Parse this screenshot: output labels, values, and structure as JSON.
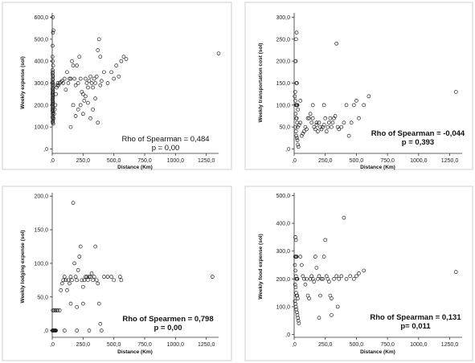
{
  "chart_data": [
    {
      "type": "scatter",
      "panel": "A",
      "xlabel": "Distance (Km)",
      "ylabel": "Weekly expense (sol)",
      "xlim": [
        0,
        1350
      ],
      "ylim": [
        -20,
        620
      ],
      "x_ticks": [
        ",0",
        "250,0",
        "500,0",
        "750,0",
        "1000,0",
        "1250,0"
      ],
      "x_tick_values": [
        0,
        250,
        500,
        750,
        1000,
        1250
      ],
      "y_ticks": [
        ",0",
        "100,0",
        "200,0",
        "300,0",
        "400,0",
        "500,0",
        "600,0"
      ],
      "y_tick_values": [
        0,
        100,
        200,
        300,
        400,
        500,
        600
      ],
      "annotations": [
        "Rho of Spearman = 0,484",
        "p = 0,00"
      ],
      "annotation_bold": false,
      "points": [
        [
          5,
          600
        ],
        [
          6,
          530
        ],
        [
          10,
          540
        ],
        [
          3,
          470
        ],
        [
          2,
          420
        ],
        [
          4,
          400
        ],
        [
          7,
          380
        ],
        [
          3,
          360
        ],
        [
          5,
          350
        ],
        [
          2,
          345
        ],
        [
          4,
          335
        ],
        [
          6,
          330
        ],
        [
          3,
          320
        ],
        [
          5,
          315
        ],
        [
          2,
          305
        ],
        [
          4,
          300
        ],
        [
          6,
          295
        ],
        [
          3,
          290
        ],
        [
          5,
          280
        ],
        [
          2,
          275
        ],
        [
          4,
          270
        ],
        [
          6,
          265
        ],
        [
          3,
          260
        ],
        [
          5,
          255
        ],
        [
          2,
          250
        ],
        [
          4,
          245
        ],
        [
          6,
          240
        ],
        [
          3,
          235
        ],
        [
          5,
          230
        ],
        [
          2,
          225
        ],
        [
          4,
          220
        ],
        [
          6,
          215
        ],
        [
          3,
          210
        ],
        [
          5,
          205
        ],
        [
          2,
          200
        ],
        [
          4,
          195
        ],
        [
          6,
          190
        ],
        [
          3,
          185
        ],
        [
          5,
          180
        ],
        [
          2,
          175
        ],
        [
          4,
          170
        ],
        [
          6,
          165
        ],
        [
          3,
          160
        ],
        [
          5,
          150
        ],
        [
          2,
          145
        ],
        [
          4,
          140
        ],
        [
          6,
          130
        ],
        [
          3,
          125
        ],
        [
          5,
          120
        ],
        [
          8,
          115
        ],
        [
          12,
          140
        ],
        [
          15,
          160
        ],
        [
          20,
          180
        ],
        [
          25,
          200
        ],
        [
          30,
          250
        ],
        [
          35,
          280
        ],
        [
          40,
          290
        ],
        [
          45,
          300
        ],
        [
          50,
          290
        ],
        [
          60,
          300
        ],
        [
          70,
          305
        ],
        [
          80,
          310
        ],
        [
          90,
          300
        ],
        [
          100,
          320
        ],
        [
          110,
          270
        ],
        [
          120,
          350
        ],
        [
          130,
          300
        ],
        [
          140,
          320
        ],
        [
          150,
          320
        ],
        [
          160,
          400
        ],
        [
          170,
          380
        ],
        [
          180,
          320
        ],
        [
          190,
          290
        ],
        [
          200,
          380
        ],
        [
          210,
          300
        ],
        [
          220,
          420
        ],
        [
          230,
          320
        ],
        [
          240,
          260
        ],
        [
          250,
          250
        ],
        [
          260,
          220
        ],
        [
          270,
          320
        ],
        [
          280,
          300
        ],
        [
          290,
          280
        ],
        [
          300,
          310
        ],
        [
          310,
          330
        ],
        [
          320,
          300
        ],
        [
          330,
          280
        ],
        [
          340,
          320
        ],
        [
          350,
          300
        ],
        [
          360,
          330
        ],
        [
          370,
          450
        ],
        [
          380,
          500
        ],
        [
          390,
          420
        ],
        [
          400,
          310
        ],
        [
          420,
          350
        ],
        [
          450,
          300
        ],
        [
          480,
          350
        ],
        [
          500,
          320
        ],
        [
          520,
          380
        ],
        [
          540,
          330
        ],
        [
          560,
          400
        ],
        [
          580,
          420
        ],
        [
          600,
          410
        ],
        [
          150,
          100
        ],
        [
          170,
          200
        ],
        [
          190,
          150
        ],
        [
          210,
          180
        ],
        [
          230,
          200
        ],
        [
          250,
          160
        ],
        [
          270,
          240
        ],
        [
          290,
          210
        ],
        [
          310,
          140
        ],
        [
          330,
          180
        ],
        [
          350,
          230
        ],
        [
          370,
          120
        ],
        [
          390,
          290
        ],
        [
          1350,
          435
        ]
      ]
    },
    {
      "type": "scatter",
      "panel": "B",
      "xlabel": "Distance (Km)",
      "ylabel": "Weekly transportation cost (sol)",
      "xlim": [
        0,
        1350
      ],
      "ylim": [
        -10,
        310
      ],
      "x_ticks": [
        ",0",
        "250,0",
        "500,0",
        "750,0",
        "1000,0",
        "1250,0"
      ],
      "x_tick_values": [
        0,
        250,
        500,
        750,
        1000,
        1250
      ],
      "y_ticks": [
        ",0",
        "50,0",
        "100,0",
        "150,0",
        "200,0",
        "250,0",
        "300,0"
      ],
      "y_tick_values": [
        0,
        50,
        100,
        150,
        200,
        250,
        300
      ],
      "annotations": [
        "Rho of Spearman = -0,044",
        "p = 0,393"
      ],
      "annotation_bold": true,
      "points": [
        [
          20,
          265
        ],
        [
          15,
          250
        ],
        [
          10,
          200
        ],
        [
          12,
          200
        ],
        [
          18,
          150
        ],
        [
          22,
          150
        ],
        [
          8,
          130
        ],
        [
          5,
          120
        ],
        [
          10,
          110
        ],
        [
          14,
          100
        ],
        [
          18,
          100
        ],
        [
          22,
          100
        ],
        [
          26,
          100
        ],
        [
          30,
          90
        ],
        [
          12,
          80
        ],
        [
          16,
          70
        ],
        [
          20,
          70
        ],
        [
          24,
          60
        ],
        [
          28,
          50
        ],
        [
          10,
          50
        ],
        [
          14,
          40
        ],
        [
          18,
          30
        ],
        [
          22,
          25
        ],
        [
          26,
          20
        ],
        [
          30,
          10
        ],
        [
          34,
          5
        ],
        [
          40,
          55
        ],
        [
          50,
          60
        ],
        [
          60,
          30
        ],
        [
          70,
          35
        ],
        [
          80,
          40
        ],
        [
          90,
          50
        ],
        [
          100,
          45
        ],
        [
          110,
          70
        ],
        [
          120,
          70
        ],
        [
          130,
          80
        ],
        [
          140,
          60
        ],
        [
          150,
          70
        ],
        [
          160,
          50
        ],
        [
          170,
          45
        ],
        [
          180,
          55
        ],
        [
          190,
          40
        ],
        [
          200,
          60
        ],
        [
          210,
          50
        ],
        [
          220,
          45
        ],
        [
          230,
          50
        ],
        [
          240,
          55
        ],
        [
          250,
          70
        ],
        [
          260,
          40
        ],
        [
          270,
          50
        ],
        [
          280,
          60
        ],
        [
          290,
          70
        ],
        [
          300,
          50
        ],
        [
          310,
          60
        ],
        [
          320,
          70
        ],
        [
          330,
          75
        ],
        [
          340,
          240
        ],
        [
          350,
          50
        ],
        [
          360,
          45
        ],
        [
          380,
          50
        ],
        [
          400,
          60
        ],
        [
          420,
          100
        ],
        [
          440,
          30
        ],
        [
          460,
          60
        ],
        [
          480,
          100
        ],
        [
          500,
          110
        ],
        [
          520,
          70
        ],
        [
          560,
          100
        ],
        [
          600,
          120
        ],
        [
          50,
          110
        ],
        [
          150,
          100
        ],
        [
          180,
          60
        ],
        [
          240,
          100
        ],
        [
          1300,
          130
        ]
      ]
    },
    {
      "type": "scatter",
      "panel": "C",
      "xlabel": "Distance (Km)",
      "ylabel": "Weekly lodging expense (sol)",
      "xlim": [
        0,
        1350
      ],
      "ylim": [
        -10,
        205
      ],
      "x_ticks": [
        ",0",
        "250,0",
        "500,0",
        "750,0",
        "1000,0",
        "1250,0"
      ],
      "x_tick_values": [
        0,
        250,
        500,
        750,
        1000,
        1250
      ],
      "y_ticks": [
        ",0",
        "50,0",
        "100,0",
        "150,0",
        "200,0"
      ],
      "y_tick_values": [
        0,
        50,
        100,
        150,
        200
      ],
      "annotations": [
        "Rho of Spearmen = 0,798",
        "p = 0,00"
      ],
      "annotation_bold": true,
      "points": [
        [
          2,
          0
        ],
        [
          4,
          0
        ],
        [
          6,
          0
        ],
        [
          8,
          0
        ],
        [
          10,
          0
        ],
        [
          12,
          0
        ],
        [
          14,
          0
        ],
        [
          16,
          0
        ],
        [
          18,
          0
        ],
        [
          20,
          0
        ],
        [
          22,
          0
        ],
        [
          24,
          0
        ],
        [
          26,
          0
        ],
        [
          28,
          0
        ],
        [
          30,
          0
        ],
        [
          5,
          30
        ],
        [
          15,
          30
        ],
        [
          25,
          30
        ],
        [
          35,
          30
        ],
        [
          45,
          30
        ],
        [
          60,
          30
        ],
        [
          70,
          60
        ],
        [
          80,
          70
        ],
        [
          90,
          75
        ],
        [
          100,
          80
        ],
        [
          110,
          75
        ],
        [
          120,
          60
        ],
        [
          130,
          75
        ],
        [
          140,
          70
        ],
        [
          150,
          80
        ],
        [
          160,
          75
        ],
        [
          170,
          190
        ],
        [
          180,
          100
        ],
        [
          190,
          80
        ],
        [
          200,
          75
        ],
        [
          210,
          90
        ],
        [
          220,
          110
        ],
        [
          230,
          125
        ],
        [
          240,
          75
        ],
        [
          250,
          65
        ],
        [
          260,
          75
        ],
        [
          270,
          80
        ],
        [
          280,
          80
        ],
        [
          290,
          75
        ],
        [
          300,
          80
        ],
        [
          310,
          80
        ],
        [
          320,
          85
        ],
        [
          330,
          75
        ],
        [
          340,
          80
        ],
        [
          350,
          125
        ],
        [
          360,
          75
        ],
        [
          370,
          70
        ],
        [
          380,
          40
        ],
        [
          390,
          10
        ],
        [
          400,
          0
        ],
        [
          420,
          80
        ],
        [
          450,
          80
        ],
        [
          480,
          80
        ],
        [
          500,
          75
        ],
        [
          550,
          80
        ],
        [
          560,
          75
        ],
        [
          150,
          40
        ],
        [
          200,
          35
        ],
        [
          250,
          40
        ],
        [
          300,
          0
        ],
        [
          200,
          0
        ],
        [
          100,
          0
        ],
        [
          1300,
          80
        ]
      ]
    },
    {
      "type": "scatter",
      "panel": "D",
      "xlabel": "Distance (Km)",
      "ylabel": "Weekly food expense (sol)",
      "xlim": [
        0,
        1350
      ],
      "ylim": [
        -10,
        510
      ],
      "x_ticks": [
        ",0",
        "250,0",
        "500,0",
        "750,0",
        "1000,0",
        "1250,0"
      ],
      "x_tick_values": [
        0,
        250,
        500,
        750,
        1000,
        1250
      ],
      "y_ticks": [
        ",0",
        "100,0",
        "200,0",
        "300,0",
        "400,0",
        "500,0"
      ],
      "y_tick_values": [
        0,
        100,
        200,
        300,
        400,
        500
      ],
      "annotations": [
        "Rho of Spearman = 0,131",
        "p= 0,011"
      ],
      "annotation_bold": true,
      "points": [
        [
          10,
          350
        ],
        [
          14,
          340
        ],
        [
          8,
          280
        ],
        [
          12,
          280
        ],
        [
          16,
          280
        ],
        [
          20,
          280
        ],
        [
          6,
          250
        ],
        [
          10,
          230
        ],
        [
          14,
          210
        ],
        [
          18,
          200
        ],
        [
          22,
          200
        ],
        [
          26,
          200
        ],
        [
          8,
          180
        ],
        [
          12,
          170
        ],
        [
          16,
          150
        ],
        [
          20,
          140
        ],
        [
          24,
          140
        ],
        [
          28,
          130
        ],
        [
          6,
          120
        ],
        [
          10,
          110
        ],
        [
          14,
          100
        ],
        [
          18,
          90
        ],
        [
          22,
          80
        ],
        [
          26,
          70
        ],
        [
          30,
          60
        ],
        [
          34,
          50
        ],
        [
          38,
          40
        ],
        [
          50,
          280
        ],
        [
          60,
          250
        ],
        [
          70,
          210
        ],
        [
          80,
          200
        ],
        [
          90,
          180
        ],
        [
          100,
          200
        ],
        [
          110,
          140
        ],
        [
          120,
          130
        ],
        [
          130,
          200
        ],
        [
          140,
          210
        ],
        [
          150,
          200
        ],
        [
          160,
          190
        ],
        [
          170,
          280
        ],
        [
          180,
          240
        ],
        [
          190,
          200
        ],
        [
          200,
          210
        ],
        [
          210,
          140
        ],
        [
          220,
          200
        ],
        [
          230,
          200
        ],
        [
          240,
          280
        ],
        [
          250,
          340
        ],
        [
          260,
          210
        ],
        [
          270,
          200
        ],
        [
          280,
          190
        ],
        [
          290,
          140
        ],
        [
          300,
          130
        ],
        [
          320,
          200
        ],
        [
          340,
          210
        ],
        [
          360,
          200
        ],
        [
          380,
          210
        ],
        [
          400,
          420
        ],
        [
          420,
          200
        ],
        [
          450,
          210
        ],
        [
          480,
          200
        ],
        [
          500,
          210
        ],
        [
          520,
          220
        ],
        [
          560,
          230
        ],
        [
          200,
          60
        ],
        [
          300,
          70
        ],
        [
          350,
          100
        ],
        [
          1300,
          225
        ]
      ]
    }
  ]
}
